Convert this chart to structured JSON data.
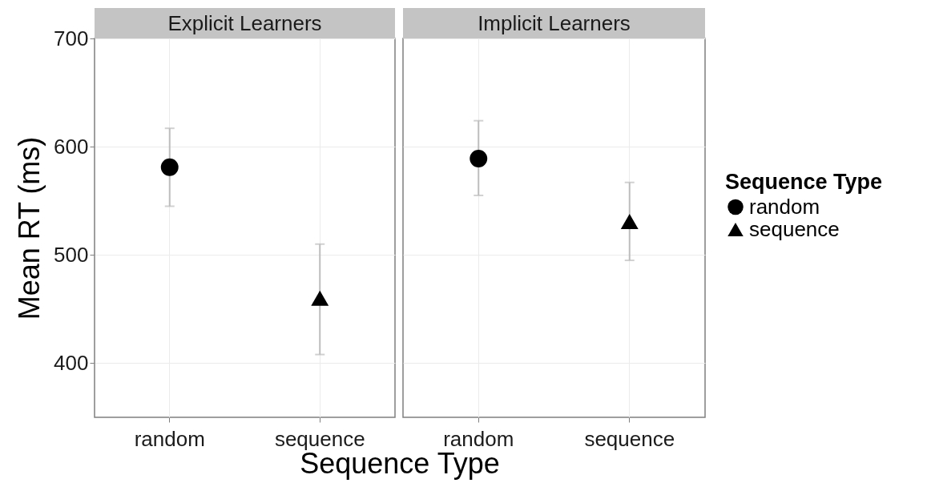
{
  "chart_data": [
    {
      "type": "scatter",
      "title": "Explicit Learners",
      "xlabel": "Sequence Type",
      "ylabel": "Mean RT (ms)",
      "categories": [
        "random",
        "sequence"
      ],
      "ylim": [
        350,
        700
      ],
      "yticks": [
        400,
        500,
        600,
        700
      ],
      "grid": true,
      "series": [
        {
          "color": "#000000",
          "marker": "circle",
          "values": [
            581,
            null
          ],
          "errors": [
            [
              545,
              617
            ],
            null
          ]
        },
        {
          "color": "#000000",
          "marker": "triangle",
          "values": [
            null,
            460
          ],
          "errors": [
            null,
            [
              408,
              510
            ]
          ]
        }
      ]
    },
    {
      "type": "scatter",
      "title": "Implicit Learners",
      "categories": [
        "random",
        "sequence"
      ],
      "ylim": [
        350,
        700
      ],
      "yticks": [
        400,
        500,
        600,
        700
      ],
      "grid": true,
      "legend": "right",
      "legend_title": "Sequence Type",
      "tick_labels": "x",
      "series": [
        {
          "name": "random",
          "color": "#000000",
          "marker": "circle",
          "values": [
            589,
            null
          ],
          "errors": [
            [
              555,
              624
            ],
            null
          ]
        },
        {
          "name": "sequence",
          "color": "#000000",
          "marker": "triangle",
          "values": [
            null,
            531
          ],
          "errors": [
            null,
            [
              495,
              567
            ]
          ]
        }
      ]
    }
  ]
}
